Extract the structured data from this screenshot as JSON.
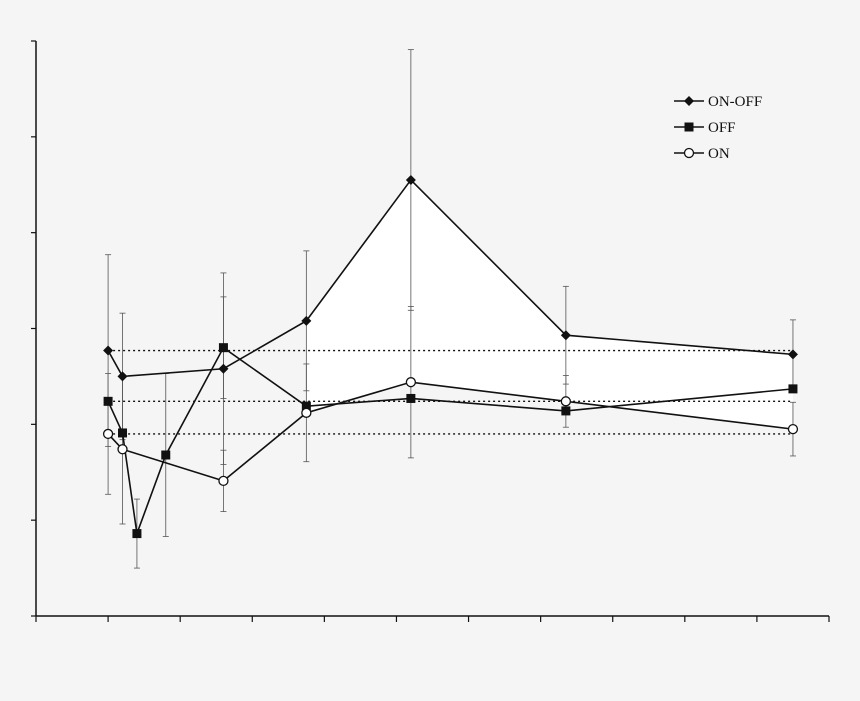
{
  "chart_data": {
    "type": "line",
    "title": "",
    "xlabel": "",
    "ylabel": "",
    "xlim": [
      0,
      11
    ],
    "ylim": [
      0,
      6
    ],
    "grid": false,
    "legend_position": "top-right",
    "tick_labels_visible": false,
    "shaded_region": {
      "between": [
        "ON-OFF",
        "ON"
      ],
      "from_x": 3.75,
      "color": "#ffffff"
    },
    "reference_lines": [
      {
        "y": 2.77,
        "style": "dotted"
      },
      {
        "y": 2.24,
        "style": "dotted"
      },
      {
        "y": 1.9,
        "style": "dotted"
      }
    ],
    "series": [
      {
        "name": "ON-OFF",
        "marker": "diamond-filled",
        "points": [
          {
            "x": 1.0,
            "y": 2.77,
            "err": 1.0
          },
          {
            "x": 1.2,
            "y": 2.5,
            "err": 0.66
          },
          {
            "x": 2.6,
            "y": 2.58,
            "err": 1.0
          },
          {
            "x": 3.75,
            "y": 3.08,
            "err": 0.73
          },
          {
            "x": 5.2,
            "y": 4.55,
            "err": 1.36
          },
          {
            "x": 7.35,
            "y": 2.93,
            "err": 0.51
          },
          {
            "x": 10.5,
            "y": 2.73,
            "err": 0.36
          }
        ]
      },
      {
        "name": "OFF",
        "marker": "square-filled",
        "points": [
          {
            "x": 1.0,
            "y": 2.24,
            "err": 0
          },
          {
            "x": 1.2,
            "y": 1.91,
            "err": 0
          },
          {
            "x": 1.4,
            "y": 0.86,
            "err": 0.36
          },
          {
            "x": 1.8,
            "y": 1.68,
            "err": 0.85
          },
          {
            "x": 2.6,
            "y": 2.8,
            "err": 0.53
          },
          {
            "x": 3.75,
            "y": 2.19,
            "err": 0
          },
          {
            "x": 5.2,
            "y": 2.27,
            "err": 0
          },
          {
            "x": 7.35,
            "y": 2.14,
            "err": 0
          },
          {
            "x": 10.5,
            "y": 2.37,
            "err": 0
          }
        ]
      },
      {
        "name": "ON",
        "marker": "circle-open",
        "points": [
          {
            "x": 1.0,
            "y": 1.9,
            "err": 0.63
          },
          {
            "x": 1.2,
            "y": 1.74,
            "err": 0.78
          },
          {
            "x": 2.6,
            "y": 1.41,
            "err": 0.32
          },
          {
            "x": 3.75,
            "y": 2.12,
            "err": 0.51
          },
          {
            "x": 5.2,
            "y": 2.44,
            "err": 0.79
          },
          {
            "x": 7.35,
            "y": 2.24,
            "err": 0.27
          },
          {
            "x": 10.5,
            "y": 1.95,
            "err": 0.28
          }
        ]
      }
    ]
  }
}
